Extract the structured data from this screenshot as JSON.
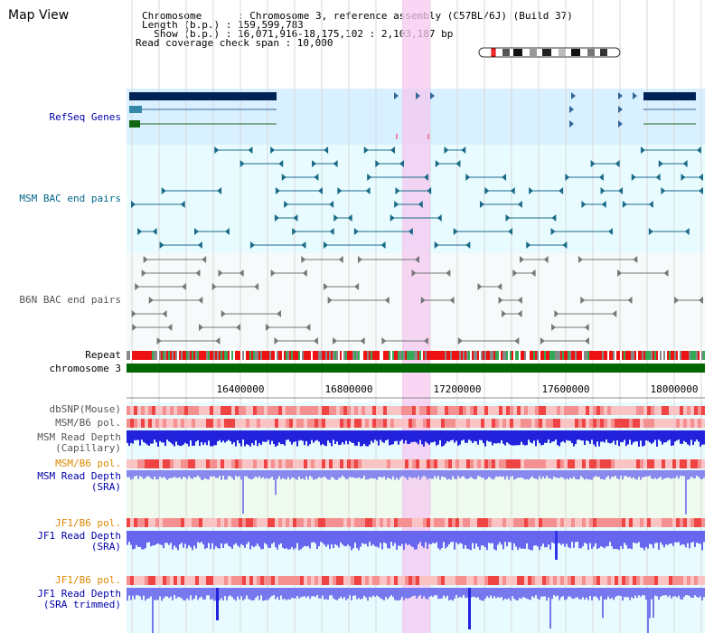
{
  "page": {
    "title": "Map View"
  },
  "info": {
    "chromosome_line": "Chromosome      : Chromosome 3, reference assembly (C57BL/6J) (Build 37)",
    "length_line": "Length (b.p.) : 159,599,783",
    "show_line": "  Show (b.p.) : 16,071,916-18,175,102 : 2,103,187 bp",
    "span_line": "Read coverage check span : 10,000"
  },
  "tracks": {
    "refseq": "RefSeq Genes",
    "msm_bac": "MSM BAC end pairs",
    "b6n_bac": "B6N BAC end pairs",
    "repeat": "Repeat",
    "chromosome": "chromosome 3",
    "dbsnp": "dbSNP(Mouse)",
    "msm_b6_pol_1": "MSM/B6 pol.",
    "msm_depth_cap": "MSM Read Depth\n(Capillary)",
    "msm_b6_pol_2": "MSM/B6 pol.",
    "msm_depth_sra": "MSM Read Depth\n(SRA)",
    "jf1_b6_pol_1": "JF1/B6 pol.",
    "jf1_depth_sra": "JF1 Read Depth\n(SRA)",
    "jf1_b6_pol_2": "JF1/B6 pol.",
    "jf1_depth_trim": "JF1 Read Depth\n(SRA trimmed)"
  },
  "axis": {
    "ticks": [
      "16400000",
      "16800000",
      "17200000",
      "17600000",
      "18000000"
    ]
  },
  "colors": {
    "highlight": "#f8d8f8",
    "refseq_bg": "#d8f0ff",
    "bac_bg": "#e8fcff",
    "chromosome_bar": "#006600",
    "depth_blue": "#3333ee",
    "pol_red": "#ee4444",
    "label_blue": "#0000aa",
    "label_orange": "#dd8800",
    "label_teal": "#006688"
  }
}
